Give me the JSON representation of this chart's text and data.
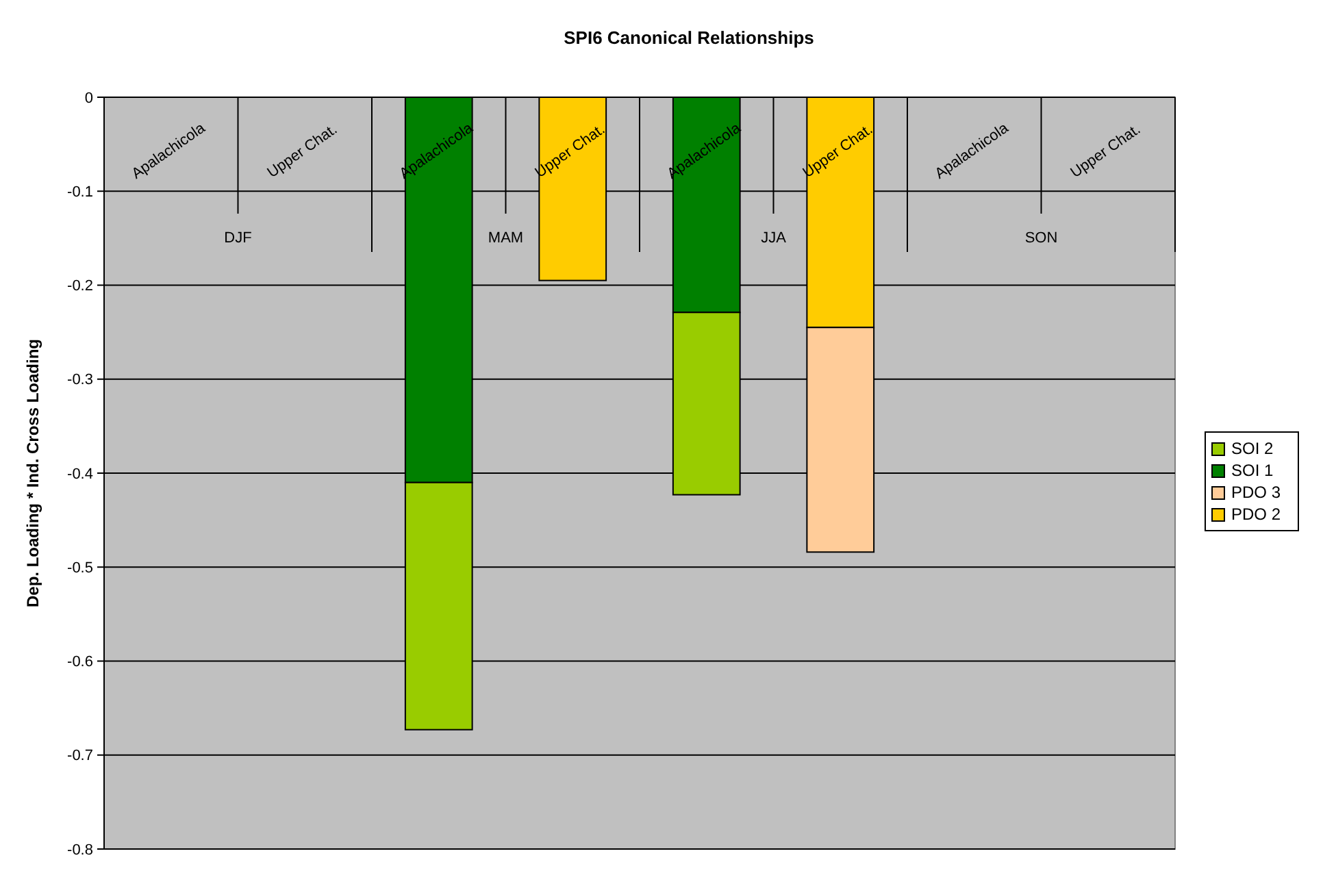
{
  "chart_data": {
    "type": "bar",
    "title": "SPI6 Canonical Relationships",
    "ylabel": "Dep. Loading * Ind. Cross Loading",
    "categories": [
      "Apalachicola",
      "Upper Chat.",
      "Apalachicola",
      "Upper Chat.",
      "Apalachicola",
      "Upper Chat.",
      "Apalachicola",
      "Upper Chat."
    ],
    "annotations": [
      "DJF",
      "MAM",
      "JJA",
      "SON"
    ],
    "stacked": true,
    "series": [
      {
        "name": "PDO 2",
        "color": "#ffcc00",
        "values": [
          null,
          null,
          null,
          -0.195,
          null,
          -0.245,
          null,
          null
        ]
      },
      {
        "name": "PDO 3",
        "color": "#ffcc99",
        "values": [
          null,
          null,
          null,
          null,
          null,
          -0.239,
          null,
          null
        ]
      },
      {
        "name": "SOI 1",
        "color": "#008000",
        "values": [
          null,
          null,
          -0.41,
          null,
          -0.229,
          null,
          null,
          null
        ]
      },
      {
        "name": "SOI 2",
        "color": "#99cc00",
        "values": [
          null,
          null,
          -0.263,
          null,
          -0.194,
          null,
          null,
          null
        ]
      }
    ],
    "ylim": [
      -0.8,
      0
    ],
    "yticks": [
      -0.8,
      -0.7,
      -0.6,
      -0.5,
      -0.4,
      -0.3,
      -0.2,
      -0.1,
      0
    ],
    "grid": "y",
    "legend": "right"
  }
}
